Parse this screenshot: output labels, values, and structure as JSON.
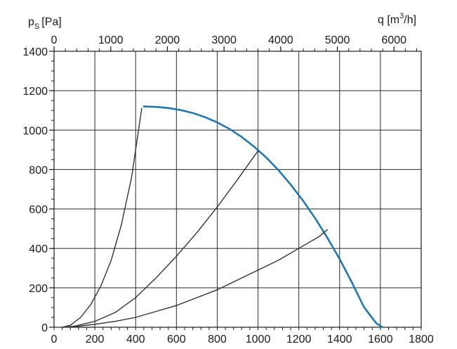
{
  "chart_data": {
    "type": "line",
    "title": "",
    "y_axis": {
      "label_main": "p",
      "label_sub": "S",
      "label_unit": "[Pa]",
      "range": [
        0,
        1400
      ],
      "ticks": [
        0,
        200,
        400,
        600,
        800,
        1000,
        1200,
        1400
      ],
      "minor_step": 50
    },
    "x_axis_bottom": {
      "label": "",
      "range": [
        0,
        1800
      ],
      "ticks": [
        0,
        200,
        400,
        600,
        800,
        1000,
        1200,
        1400,
        1600,
        1800
      ],
      "minor_step": 40
    },
    "x_axis_top": {
      "label_main": "q [m",
      "label_sup": "3",
      "label_tail": "/h]",
      "range": [
        0,
        6480
      ],
      "ticks": [
        0,
        1000,
        2000,
        3000,
        4000,
        5000,
        6000
      ],
      "minor_step": 200
    },
    "grid": true,
    "series": [
      {
        "color": "#1f78b4",
        "x": [
          440,
          500,
          560,
          620,
          680,
          740,
          800,
          860,
          920,
          980,
          1040,
          1100,
          1160,
          1220,
          1280,
          1340,
          1400,
          1460,
          1520,
          1580,
          1610
        ],
        "y": [
          1120,
          1118,
          1112,
          1102,
          1087,
          1066,
          1039,
          1006,
          965,
          917,
          861,
          797,
          724,
          643,
          553,
          454,
          346,
          228,
          101,
          20,
          0
        ]
      },
      {
        "color": "#333333",
        "x": [
          40,
          80,
          130,
          180,
          230,
          280,
          330,
          380,
          430
        ],
        "y": [
          0,
          10,
          50,
          115,
          210,
          340,
          520,
          760,
          1110
        ]
      },
      {
        "color": "#333333",
        "x": [
          40,
          100,
          200,
          300,
          400,
          500,
          600,
          700,
          800,
          900,
          1000
        ],
        "y": [
          0,
          5,
          30,
          75,
          150,
          250,
          360,
          480,
          610,
          750,
          895
        ]
      },
      {
        "color": "#333333",
        "x": [
          40,
          100,
          200,
          300,
          400,
          500,
          600,
          700,
          800,
          900,
          1000,
          1100,
          1200,
          1300,
          1340
        ],
        "y": [
          0,
          3,
          15,
          30,
          50,
          80,
          110,
          150,
          190,
          240,
          290,
          340,
          400,
          460,
          495
        ]
      }
    ]
  }
}
